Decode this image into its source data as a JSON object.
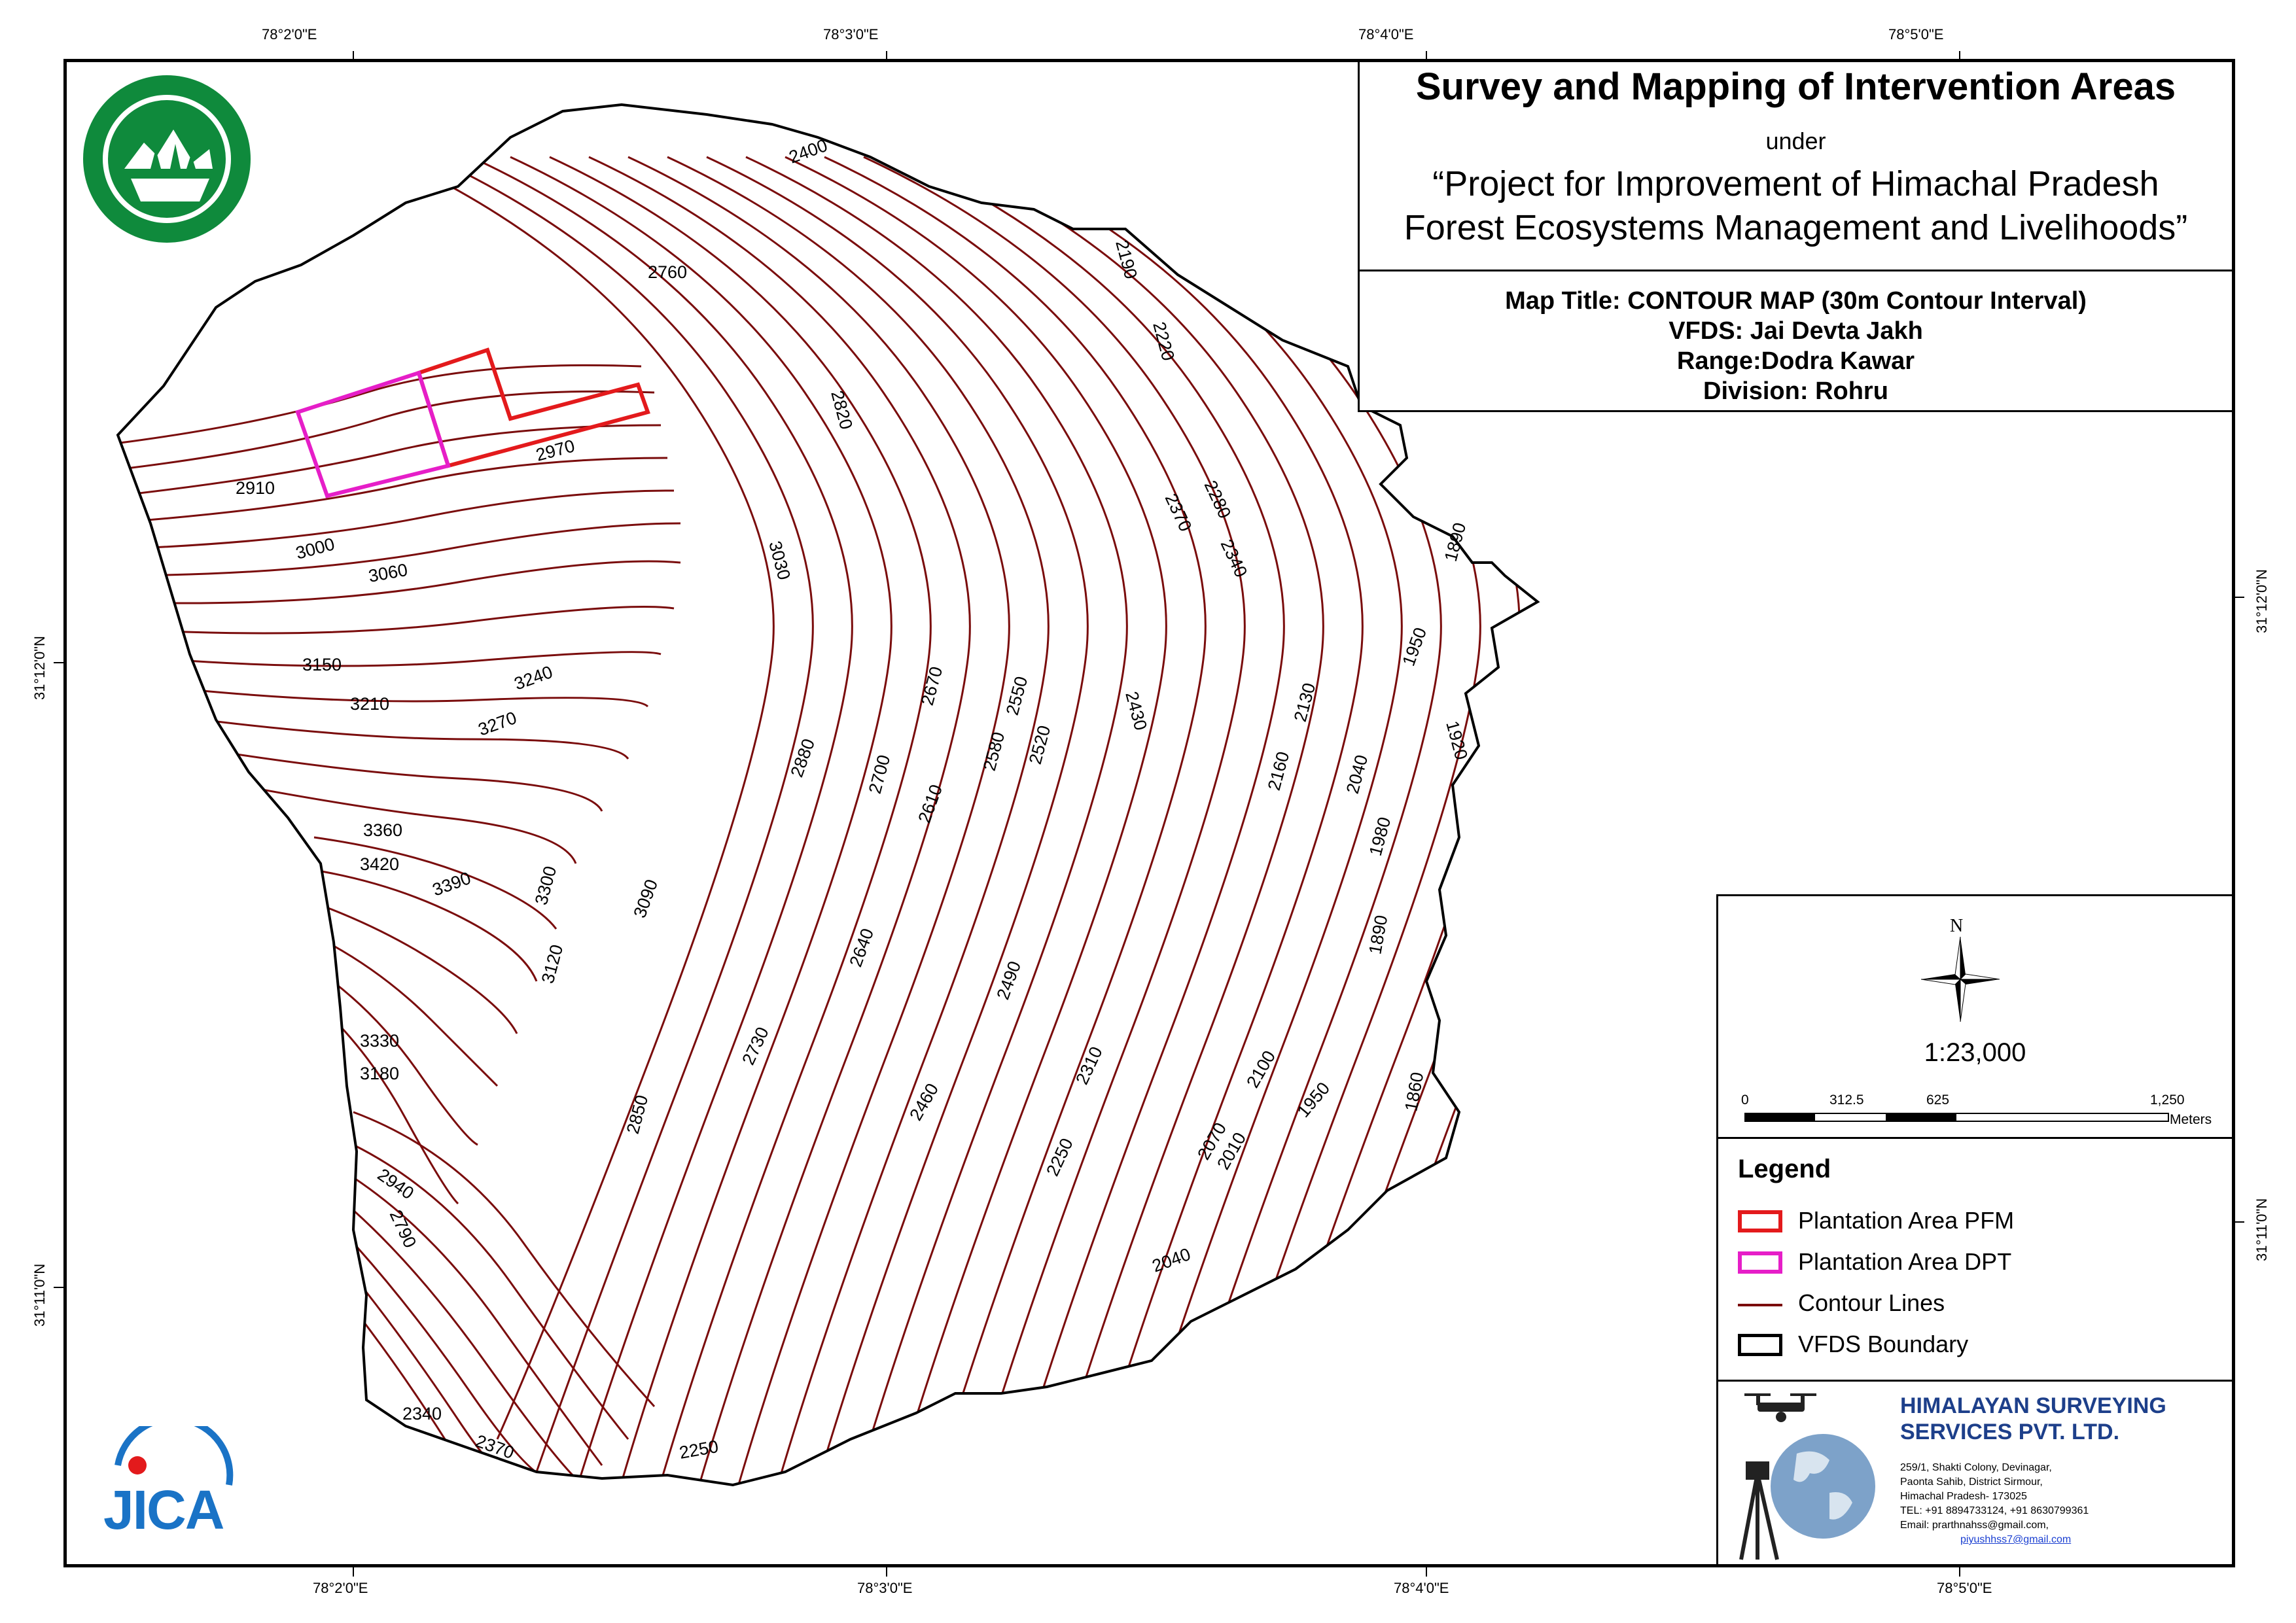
{
  "title": {
    "main": "Survey and Mapping of Intervention Areas",
    "under": "under",
    "project_line1": "“Project for Improvement of Himachal Pradesh",
    "project_line2": "Forest Ecosystems Management and Livelihoods”"
  },
  "info": {
    "map_title": "Map Title: CONTOUR MAP (30m Contour Interval)",
    "vfds": "VFDS: Jai Devta Jakh",
    "range": "Range:Dodra Kawar",
    "division": "Division: Rohru"
  },
  "graticule": {
    "top": [
      "78°2'0\"E",
      "78°3'0\"E",
      "78°4'0\"E",
      "78°5'0\"E"
    ],
    "bottom": [
      "78°2'0\"E",
      "78°3'0\"E",
      "78°4'0\"E",
      "78°5'0\"E"
    ],
    "left": [
      "31°12'0\"N",
      "31°11'0\"N"
    ],
    "right": [
      "31°12'0\"N",
      "31°11'0\"N"
    ]
  },
  "north_arrow": {
    "label": "N",
    "icon": "compass-rose-icon"
  },
  "scale": {
    "ratio": "1:23,000",
    "ticks": [
      "0",
      "312.5",
      "625",
      "1,250"
    ],
    "unit": "Meters"
  },
  "legend": {
    "title": "Legend",
    "items": [
      {
        "label": "Plantation Area PFM",
        "color": "#e31a1c",
        "symbol": "box"
      },
      {
        "label": "Plantation Area DPT",
        "color": "#e61ec8",
        "symbol": "box"
      },
      {
        "label": "Contour Lines",
        "color": "#7a0c0c",
        "symbol": "line"
      },
      {
        "label": "VFDS Boundary",
        "color": "#000000",
        "symbol": "box"
      }
    ]
  },
  "company": {
    "name_line1": "HIMALAYAN SURVEYING",
    "name_line2": "SERVICES PVT. LTD.",
    "address": [
      "259/1, Shakti Colony, Devinagar,",
      "Paonta Sahib, District Sirmour,",
      "Himachal Pradesh- 173025",
      "TEL: +91 8894733124, +91 8630799361",
      "Email: prarthnahss@gmail.com,"
    ],
    "email2": "piyushhss7@gmail.com"
  },
  "jica": {
    "text": "JICA"
  },
  "contour_labels": [
    "2400",
    "2190",
    "2760",
    "2220",
    "2820",
    "2970",
    "2910",
    "2280",
    "2370",
    "2340",
    "3000",
    "3060",
    "3030",
    "1890",
    "1950",
    "3150",
    "3240",
    "3210",
    "3270",
    "2670",
    "2550",
    "2430",
    "2130",
    "1920",
    "2880",
    "2700",
    "2580",
    "2520",
    "2160",
    "2040",
    "2610",
    "1980",
    "3360",
    "3420",
    "3390",
    "3300",
    "3090",
    "2640",
    "1890",
    "3120",
    "2490",
    "3330",
    "3180",
    "2730",
    "2310",
    "2100",
    "1860",
    "2460",
    "1950",
    "2850",
    "2070",
    "2010",
    "2250",
    "2940",
    "2790",
    "2040",
    "2340",
    "2370",
    "2250"
  ],
  "colors": {
    "contour": "#7a0c0c",
    "pfm": "#e31a1c",
    "dpt": "#e61ec8",
    "company_blue": "#1d3f8a",
    "forest_green": "#0f8a3c",
    "jica_blue": "#1a73c6"
  }
}
